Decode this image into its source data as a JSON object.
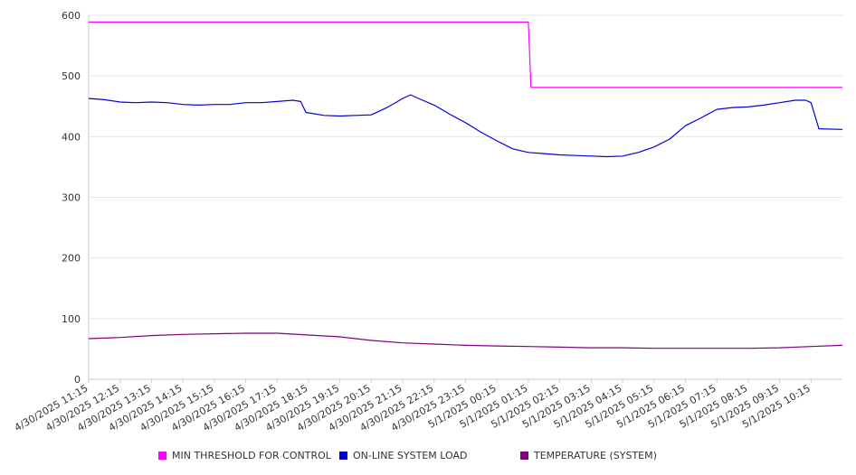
{
  "chart_data": {
    "type": "line",
    "title": "",
    "xlabel": "",
    "ylabel": "",
    "ylim": [
      0,
      600
    ],
    "y_ticks": [
      "0",
      "100",
      "200",
      "300",
      "400",
      "500",
      "600"
    ],
    "y_tick_values": [
      0,
      100,
      200,
      300,
      400,
      500,
      600
    ],
    "x_range": [
      "4/30/2025 11:15",
      "5/1/2025 11:15"
    ],
    "x_tick_labels": [
      "4/30/2025 11:15",
      "4/30/2025 12:15",
      "4/30/2025 13:15",
      "4/30/2025 14:15",
      "4/30/2025 15:15",
      "4/30/2025 16:15",
      "4/30/2025 17:15",
      "4/30/2025 18:15",
      "4/30/2025 19:15",
      "4/30/2025 20:15",
      "4/30/2025 21:15",
      "4/30/2025 22:15",
      "4/30/2025 23:15",
      "5/1/2025 00:15",
      "5/1/2025 01:15",
      "5/1/2025 02:15",
      "5/1/2025 03:15",
      "5/1/2025 04:15",
      "5/1/2025 05:15",
      "5/1/2025 06:15",
      "5/1/2025 07:15",
      "5/1/2025 08:15",
      "5/1/2025 09:15",
      "5/1/2025 10:15"
    ],
    "grid": true,
    "legend_position": "bottom",
    "series": [
      {
        "name": "MIN THRESHOLD FOR CONTROL",
        "color": "#ff00ff",
        "points": [
          [
            "4/30/2025 11:15",
            589
          ],
          [
            "5/1/2025 01:15",
            589
          ],
          [
            "5/1/2025 01:20",
            481
          ],
          [
            "5/1/2025 11:15",
            481
          ]
        ]
      },
      {
        "name": "ON-LINE SYSTEM LOAD",
        "color": "#0000dd",
        "points": [
          [
            "4/30/2025 11:15",
            463
          ],
          [
            "4/30/2025 11:45",
            461
          ],
          [
            "4/30/2025 12:15",
            457
          ],
          [
            "4/30/2025 12:45",
            456
          ],
          [
            "4/30/2025 13:15",
            457
          ],
          [
            "4/30/2025 13:45",
            456
          ],
          [
            "4/30/2025 14:15",
            453
          ],
          [
            "4/30/2025 14:45",
            452
          ],
          [
            "4/30/2025 15:15",
            453
          ],
          [
            "4/30/2025 15:45",
            453
          ],
          [
            "4/30/2025 16:15",
            456
          ],
          [
            "4/30/2025 16:45",
            456
          ],
          [
            "4/30/2025 17:15",
            458
          ],
          [
            "4/30/2025 17:45",
            460
          ],
          [
            "4/30/2025 18:00",
            458
          ],
          [
            "4/30/2025 18:10",
            440
          ],
          [
            "4/30/2025 18:45",
            435
          ],
          [
            "4/30/2025 19:15",
            434
          ],
          [
            "4/30/2025 19:45",
            435
          ],
          [
            "4/30/2025 20:15",
            436
          ],
          [
            "4/30/2025 20:45",
            448
          ],
          [
            "4/30/2025 21:15",
            463
          ],
          [
            "4/30/2025 21:30",
            469
          ],
          [
            "4/30/2025 21:45",
            463
          ],
          [
            "4/30/2025 22:15",
            452
          ],
          [
            "4/30/2025 22:45",
            437
          ],
          [
            "4/30/2025 23:15",
            423
          ],
          [
            "4/30/2025 23:45",
            407
          ],
          [
            "5/1/2025 00:15",
            393
          ],
          [
            "5/1/2025 00:45",
            380
          ],
          [
            "5/1/2025 01:15",
            374
          ],
          [
            "5/1/2025 01:45",
            372
          ],
          [
            "5/1/2025 02:15",
            370
          ],
          [
            "5/1/2025 02:45",
            369
          ],
          [
            "5/1/2025 03:15",
            368
          ],
          [
            "5/1/2025 03:45",
            367
          ],
          [
            "5/1/2025 04:15",
            368
          ],
          [
            "5/1/2025 04:45",
            374
          ],
          [
            "5/1/2025 05:15",
            383
          ],
          [
            "5/1/2025 05:45",
            396
          ],
          [
            "5/1/2025 06:15",
            418
          ],
          [
            "5/1/2025 06:45",
            431
          ],
          [
            "5/1/2025 07:15",
            445
          ],
          [
            "5/1/2025 07:45",
            448
          ],
          [
            "5/1/2025 08:15",
            449
          ],
          [
            "5/1/2025 08:45",
            452
          ],
          [
            "5/1/2025 09:15",
            456
          ],
          [
            "5/1/2025 09:45",
            460
          ],
          [
            "5/1/2025 10:05",
            460
          ],
          [
            "5/1/2025 10:15",
            456
          ],
          [
            "5/1/2025 10:30",
            413
          ],
          [
            "5/1/2025 11:15",
            412
          ]
        ]
      },
      {
        "name": "TEMPERATURE (SYSTEM)",
        "color": "#800080",
        "points": [
          [
            "4/30/2025 11:15",
            67
          ],
          [
            "4/30/2025 12:15",
            69
          ],
          [
            "4/30/2025 13:15",
            72
          ],
          [
            "4/30/2025 14:15",
            74
          ],
          [
            "4/30/2025 15:15",
            75
          ],
          [
            "4/30/2025 16:15",
            76
          ],
          [
            "4/30/2025 17:15",
            76
          ],
          [
            "4/30/2025 18:15",
            73
          ],
          [
            "4/30/2025 19:15",
            70
          ],
          [
            "4/30/2025 20:15",
            64
          ],
          [
            "4/30/2025 21:15",
            60
          ],
          [
            "4/30/2025 22:15",
            58
          ],
          [
            "4/30/2025 23:15",
            56
          ],
          [
            "5/1/2025 00:15",
            55
          ],
          [
            "5/1/2025 01:15",
            54
          ],
          [
            "5/1/2025 02:15",
            53
          ],
          [
            "5/1/2025 03:15",
            52
          ],
          [
            "5/1/2025 04:15",
            52
          ],
          [
            "5/1/2025 05:15",
            51
          ],
          [
            "5/1/2025 06:15",
            51
          ],
          [
            "5/1/2025 07:15",
            51
          ],
          [
            "5/1/2025 08:15",
            51
          ],
          [
            "5/1/2025 09:15",
            52
          ],
          [
            "5/1/2025 10:15",
            54
          ],
          [
            "5/1/2025 11:15",
            56
          ]
        ]
      }
    ]
  }
}
